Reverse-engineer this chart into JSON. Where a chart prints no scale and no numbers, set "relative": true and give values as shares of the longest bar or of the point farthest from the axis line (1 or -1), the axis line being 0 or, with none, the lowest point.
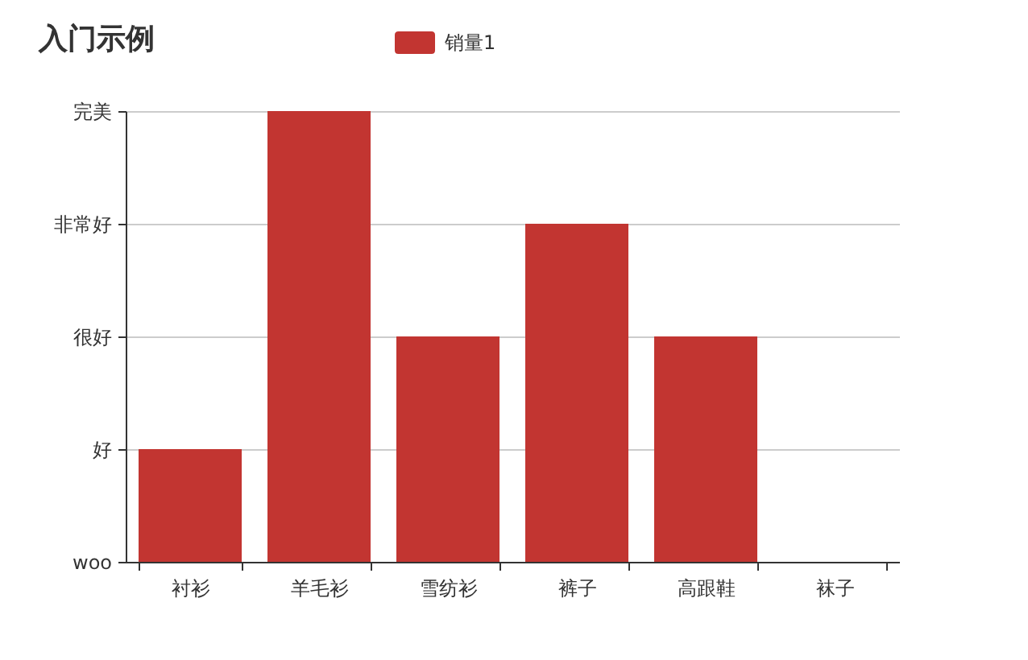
{
  "chart_data": {
    "type": "bar",
    "title": "入门示例",
    "categories": [
      "衬衫",
      "羊毛衫",
      "雪纺衫",
      "裤子",
      "高跟鞋",
      "袜子"
    ],
    "series": [
      {
        "name": "销量1",
        "color": "#c23531",
        "values": [
          0.25,
          1,
          0.5,
          0.75,
          0.5,
          0
        ]
      }
    ],
    "relative": true,
    "y_categories": [
      "完美",
      "非常好",
      "很好",
      "好",
      "woo"
    ],
    "grid": "y",
    "legend": "top"
  }
}
